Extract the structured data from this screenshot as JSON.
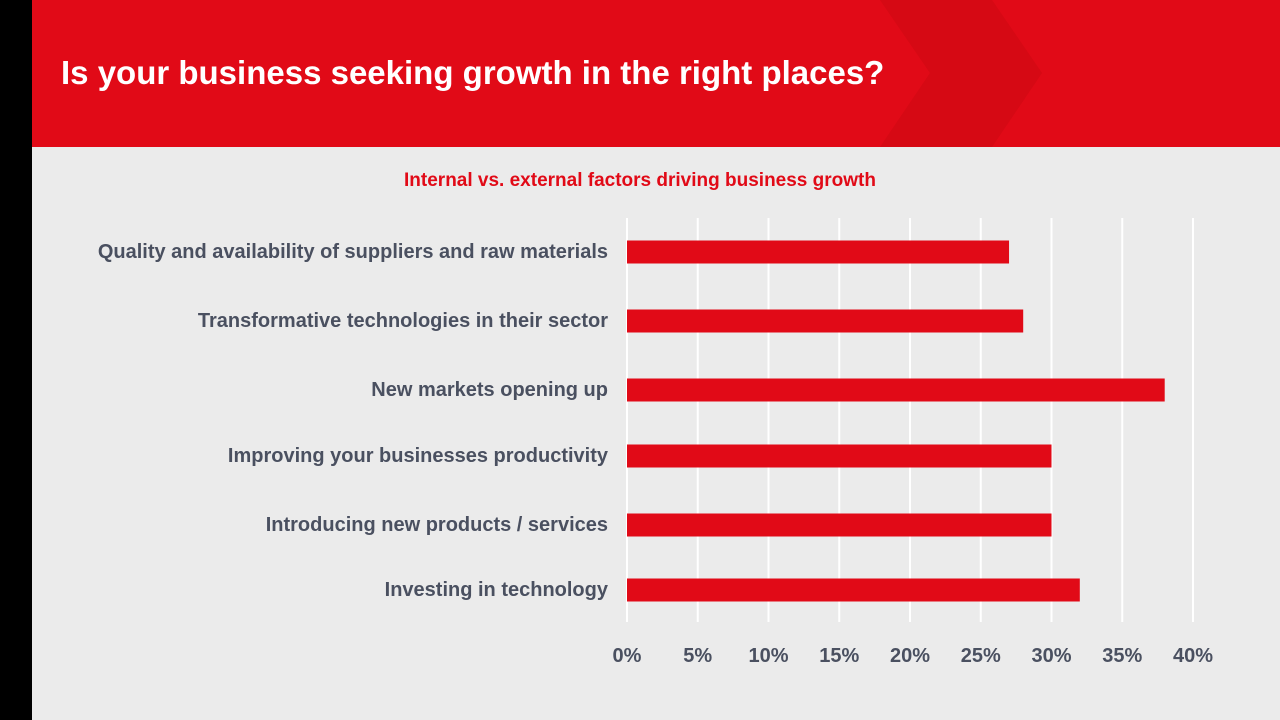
{
  "header": {
    "title": "Is your business seeking growth in the right places?"
  },
  "colors": {
    "brand_red": "#e10a17",
    "label_gray": "#4a5060",
    "background": "#ebebeb",
    "gridline": "#ffffff"
  },
  "chart_data": {
    "type": "bar",
    "orientation": "horizontal",
    "title": "Internal vs. external factors driving business growth",
    "xlabel": "",
    "ylabel": "",
    "categories": [
      "Quality and availability of suppliers and raw materials",
      "Transformative technologies in their sector",
      "New markets opening up",
      "Improving your businesses productivity",
      "Introducing new products / services",
      "Investing in technology"
    ],
    "values": [
      27,
      28,
      38,
      30,
      30,
      32
    ],
    "xlim": [
      0,
      40
    ],
    "x_ticks": [
      0,
      5,
      10,
      15,
      20,
      25,
      30,
      35,
      40
    ],
    "x_tick_labels": [
      "0%",
      "5%",
      "10%",
      "15%",
      "20%",
      "25%",
      "30%",
      "35%",
      "40%"
    ],
    "grid": true,
    "legend": "none",
    "bar_color": "#e10a17"
  }
}
